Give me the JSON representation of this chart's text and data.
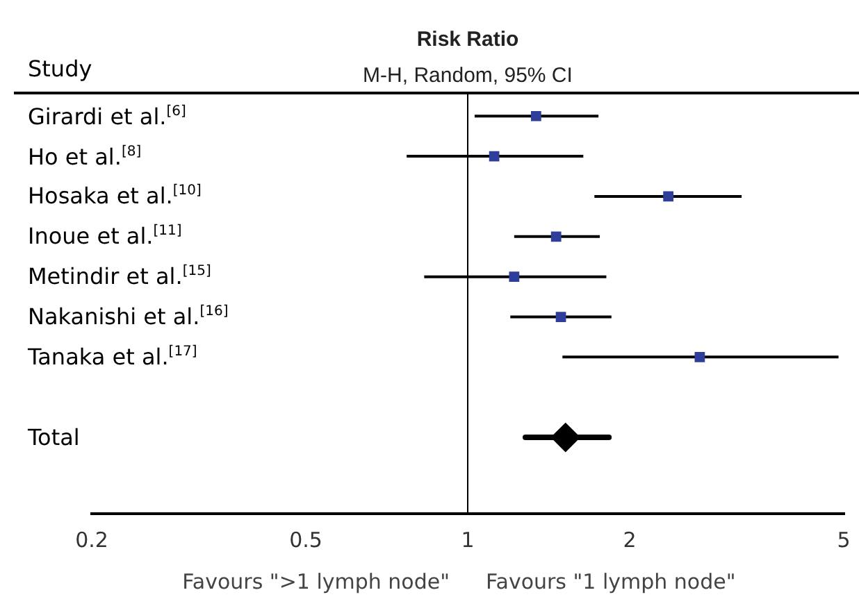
{
  "chart_data": {
    "type": "scatter",
    "title": "Risk Ratio",
    "subtitle": "M-H, Random, 95% CI",
    "ylabel": "Study",
    "categories": [
      "Girardi et al.$^{[6]}$",
      "Ho et al.$^{[8]}$",
      "Hosaka et al.$^{[10]}$",
      "Inoue et al.$^{[11]}$",
      "Metindir et al.$^{[15]}$",
      "Nakanishi et al.$^{[16]}$",
      "Tanaka et al.$^{[17]}$",
      null,
      "Total"
    ],
    "orientation": "horizontal",
    "log": "x",
    "xlim": [
      0.2,
      5
    ],
    "xticks": [
      0.2,
      0.5,
      1,
      2,
      5
    ],
    "grid": false,
    "series": [
      {
        "color": "#2e3e9a",
        "marker": "square",
        "values": [
          1.34,
          1.12,
          2.36,
          1.46,
          1.22,
          1.49,
          2.7,
          null,
          null
        ],
        "errors": [
          [
            1.03,
            1.75
          ],
          [
            0.77,
            1.64
          ],
          [
            1.72,
            3.23
          ],
          [
            1.22,
            1.76
          ],
          [
            0.83,
            1.81
          ],
          [
            1.2,
            1.85
          ],
          [
            1.5,
            4.89
          ],
          null,
          null
        ]
      },
      {
        "color": "#000000",
        "marker": "diamond",
        "values": [
          null,
          null,
          null,
          null,
          null,
          null,
          null,
          null,
          1.52
        ],
        "errors": [
          null,
          null,
          null,
          null,
          null,
          null,
          null,
          null,
          [
            1.28,
            1.83
          ]
        ]
      }
    ],
    "ref_lines": [
      {
        "axis": "x",
        "value": 1,
        "color": "#000000"
      }
    ],
    "annotations": [
      "Favours \">1 lymph node\"",
      "Favours \"1 lymph node\""
    ]
  }
}
